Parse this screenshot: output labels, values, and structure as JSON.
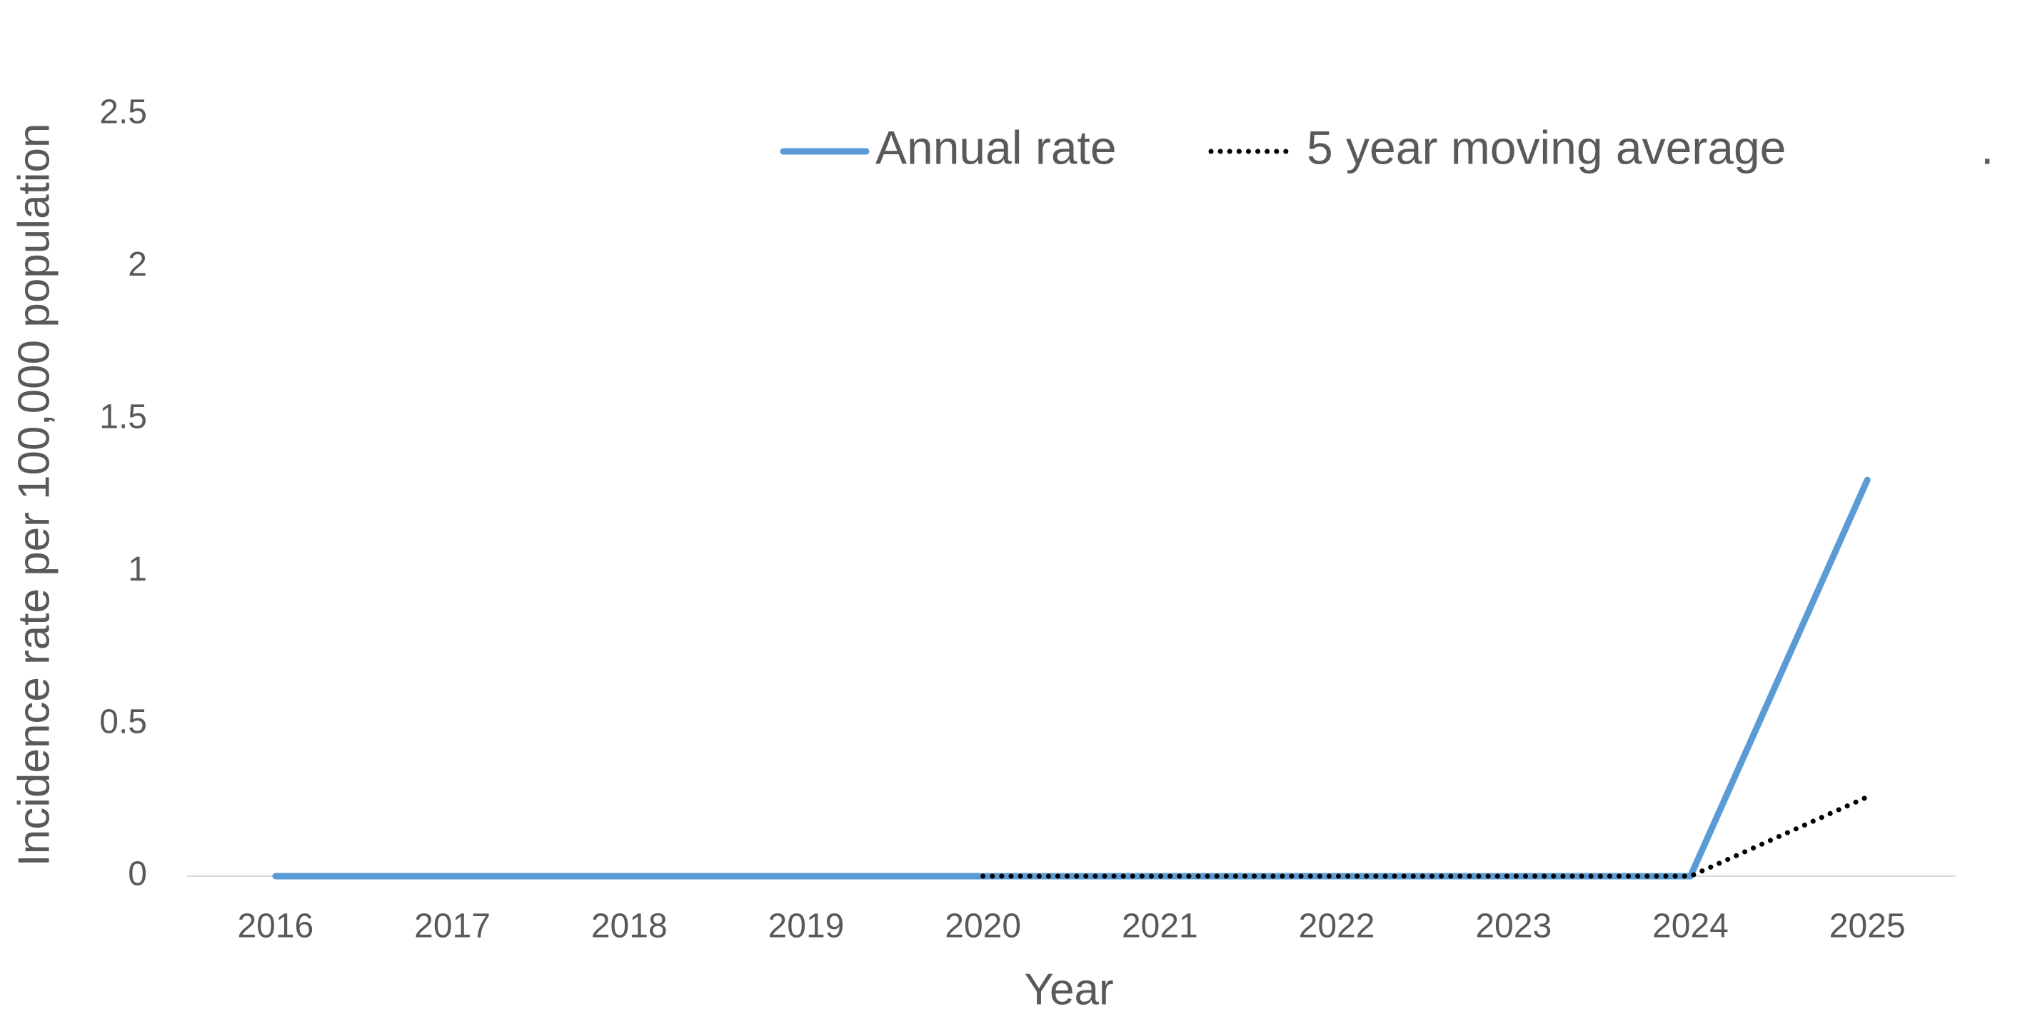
{
  "chart_data": {
    "type": "line",
    "categories": [
      "2016",
      "2017",
      "2018",
      "2019",
      "2020",
      "2021",
      "2022",
      "2023",
      "2024",
      "2025"
    ],
    "series": [
      {
        "name": "Annual rate",
        "color": "#5b9bd5",
        "style": "solid",
        "values": [
          0,
          0,
          0,
          0,
          0,
          0,
          0,
          0,
          0,
          1.3
        ]
      },
      {
        "name": "5 year moving average",
        "color": "#000000",
        "style": "dotted",
        "values": [
          null,
          null,
          null,
          null,
          0,
          0,
          0,
          0,
          0,
          0.26
        ]
      },
      {
        "name": ".",
        "values": [
          null,
          null,
          null,
          null,
          null,
          null,
          null,
          null,
          null,
          null
        ]
      }
    ],
    "ylim": [
      0,
      2.5
    ],
    "yticks": [
      0,
      0.5,
      1,
      1.5,
      2,
      2.5
    ],
    "x_label": "Year",
    "y_label": "Incidence rate per 100,000 population",
    "grid": false,
    "legend": "top"
  }
}
